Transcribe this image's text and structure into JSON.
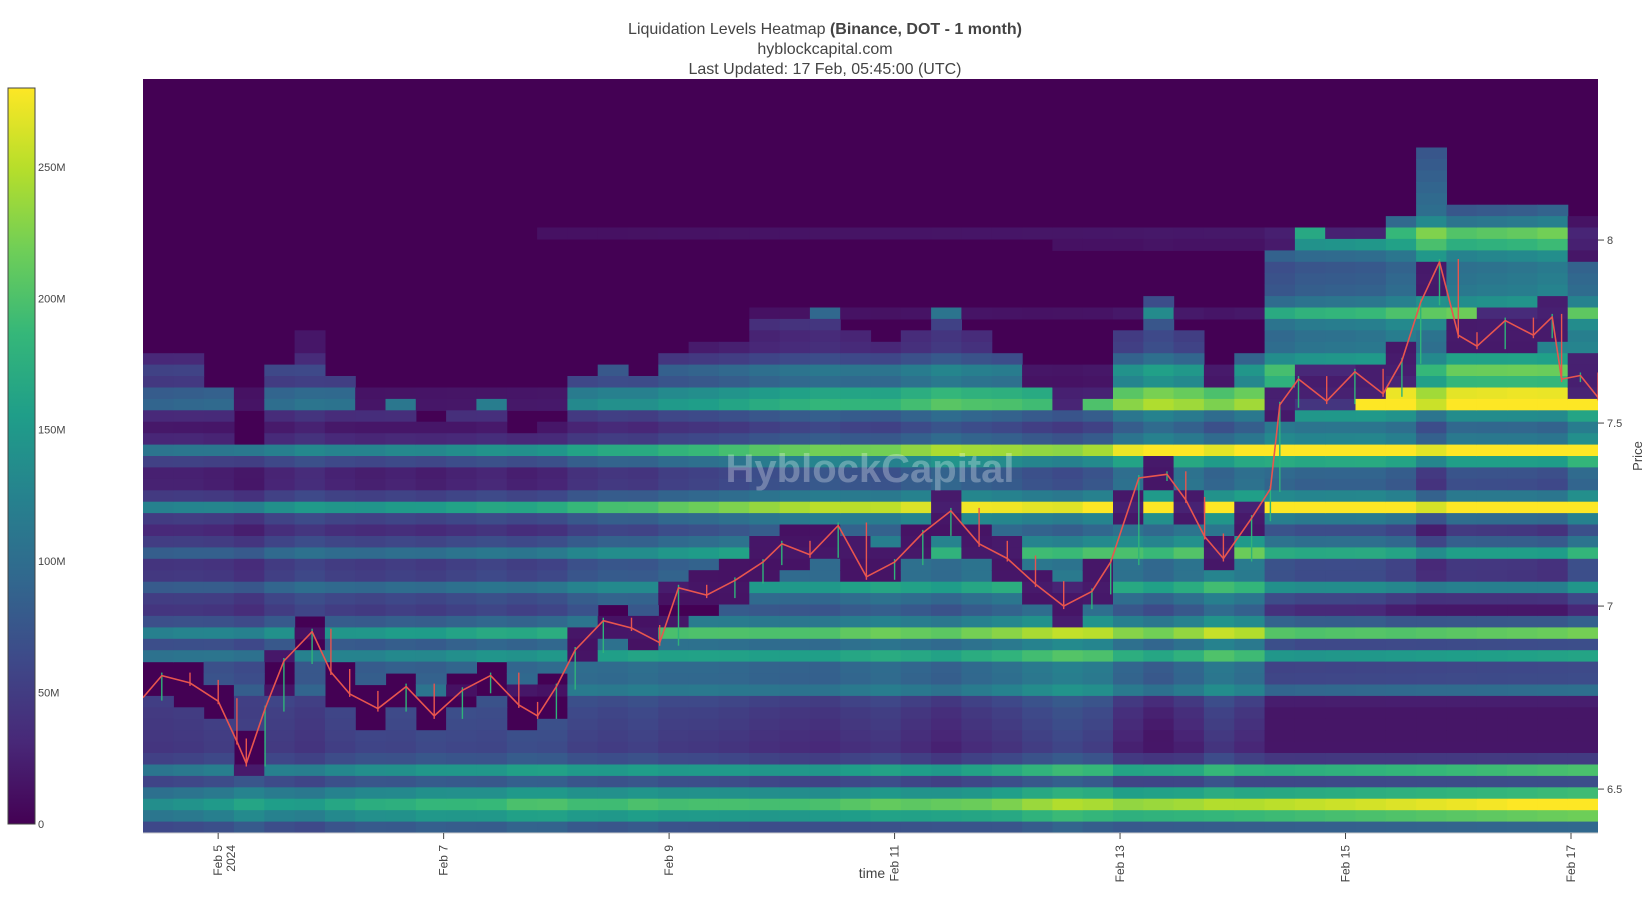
{
  "chart_data": {
    "type": "heatmap",
    "title_prefix": "Liquidation Levels Heatmap ",
    "title_bold": "(Binance, DOT - 1 month)",
    "subtitle_1": "hyblockcapital.com",
    "subtitle_2": "Last Updated: 17 Feb, 05:45:00 (UTC)",
    "watermark": "HyblockCapital",
    "xlabel": "time",
    "ylabel": "Price",
    "x_start": "2024-02-04T08:00",
    "x_end": "2024-02-17T05:45",
    "x_ticks": [
      {
        "date": "2024-02-05T00:00",
        "label": "Feb 5",
        "label2": "2024"
      },
      {
        "date": "2024-02-07T00:00",
        "label": "Feb 7"
      },
      {
        "date": "2024-02-09T00:00",
        "label": "Feb 9"
      },
      {
        "date": "2024-02-11T00:00",
        "label": "Feb 11"
      },
      {
        "date": "2024-02-13T00:00",
        "label": "Feb 13"
      },
      {
        "date": "2024-02-15T00:00",
        "label": "Feb 15"
      },
      {
        "date": "2024-02-17T00:00",
        "label": "Feb 17"
      }
    ],
    "ylim": [
      6.38,
      8.44
    ],
    "y_ticks": [
      {
        "value": 6.5,
        "label": "6.5"
      },
      {
        "value": 7,
        "label": "7"
      },
      {
        "value": 7.5,
        "label": "7.5"
      },
      {
        "value": 8,
        "label": "8"
      }
    ],
    "colorbar": {
      "range": [
        0,
        280
      ],
      "unit": "M",
      "ticks": [
        {
          "value": 0,
          "label": "0"
        },
        {
          "value": 50,
          "label": "50M"
        },
        {
          "value": 100,
          "label": "100M"
        },
        {
          "value": 150,
          "label": "150M"
        },
        {
          "value": 200,
          "label": "200M"
        },
        {
          "value": 250,
          "label": "250M"
        }
      ],
      "colors": [
        "#440154",
        "#482878",
        "#3e4989",
        "#31688e",
        "#26828e",
        "#1f9e89",
        "#35b779",
        "#6ece58",
        "#b5de2b",
        "#fde725"
      ]
    },
    "price_path": [
      [
        "2024-02-04T08:00",
        6.75
      ],
      [
        "2024-02-04T12:00",
        6.81
      ],
      [
        "2024-02-04T18:00",
        6.79
      ],
      [
        "2024-02-05T00:00",
        6.74
      ],
      [
        "2024-02-05T04:00",
        6.63
      ],
      [
        "2024-02-05T06:00",
        6.57
      ],
      [
        "2024-02-05T10:00",
        6.72
      ],
      [
        "2024-02-05T14:00",
        6.85
      ],
      [
        "2024-02-05T20:00",
        6.93
      ],
      [
        "2024-02-06T00:00",
        6.82
      ],
      [
        "2024-02-06T04:00",
        6.76
      ],
      [
        "2024-02-06T10:00",
        6.72
      ],
      [
        "2024-02-06T16:00",
        6.78
      ],
      [
        "2024-02-06T22:00",
        6.7
      ],
      [
        "2024-02-07T04:00",
        6.77
      ],
      [
        "2024-02-07T10:00",
        6.81
      ],
      [
        "2024-02-07T16:00",
        6.73
      ],
      [
        "2024-02-07T20:00",
        6.7
      ],
      [
        "2024-02-08T00:00",
        6.78
      ],
      [
        "2024-02-08T04:00",
        6.88
      ],
      [
        "2024-02-08T10:00",
        6.96
      ],
      [
        "2024-02-08T16:00",
        6.94
      ],
      [
        "2024-02-08T22:00",
        6.9
      ],
      [
        "2024-02-09T02:00",
        7.05
      ],
      [
        "2024-02-09T08:00",
        7.03
      ],
      [
        "2024-02-09T14:00",
        7.07
      ],
      [
        "2024-02-09T20:00",
        7.12
      ],
      [
        "2024-02-10T00:00",
        7.17
      ],
      [
        "2024-02-10T06:00",
        7.14
      ],
      [
        "2024-02-10T12:00",
        7.22
      ],
      [
        "2024-02-10T18:00",
        7.08
      ],
      [
        "2024-02-11T00:00",
        7.12
      ],
      [
        "2024-02-11T06:00",
        7.2
      ],
      [
        "2024-02-11T12:00",
        7.26
      ],
      [
        "2024-02-11T18:00",
        7.17
      ],
      [
        "2024-02-12T00:00",
        7.13
      ],
      [
        "2024-02-12T06:00",
        7.06
      ],
      [
        "2024-02-12T12:00",
        7.0
      ],
      [
        "2024-02-12T18:00",
        7.04
      ],
      [
        "2024-02-12T22:00",
        7.12
      ],
      [
        "2024-02-13T04:00",
        7.35
      ],
      [
        "2024-02-13T10:00",
        7.36
      ],
      [
        "2024-02-13T14:00",
        7.29
      ],
      [
        "2024-02-13T18:00",
        7.19
      ],
      [
        "2024-02-13T22:00",
        7.13
      ],
      [
        "2024-02-14T04:00",
        7.24
      ],
      [
        "2024-02-14T08:00",
        7.32
      ],
      [
        "2024-02-14T10:00",
        7.55
      ],
      [
        "2024-02-14T14:00",
        7.62
      ],
      [
        "2024-02-14T20:00",
        7.56
      ],
      [
        "2024-02-15T02:00",
        7.64
      ],
      [
        "2024-02-15T08:00",
        7.58
      ],
      [
        "2024-02-15T12:00",
        7.67
      ],
      [
        "2024-02-15T16:00",
        7.83
      ],
      [
        "2024-02-15T20:00",
        7.94
      ],
      [
        "2024-02-16T00:00",
        7.74
      ],
      [
        "2024-02-16T04:00",
        7.71
      ],
      [
        "2024-02-16T10:00",
        7.78
      ],
      [
        "2024-02-16T16:00",
        7.74
      ],
      [
        "2024-02-16T20:00",
        7.79
      ],
      [
        "2024-02-16T22:00",
        7.62
      ],
      [
        "2024-02-17T02:00",
        7.63
      ],
      [
        "2024-02-17T05:45",
        7.57
      ]
    ]
  }
}
